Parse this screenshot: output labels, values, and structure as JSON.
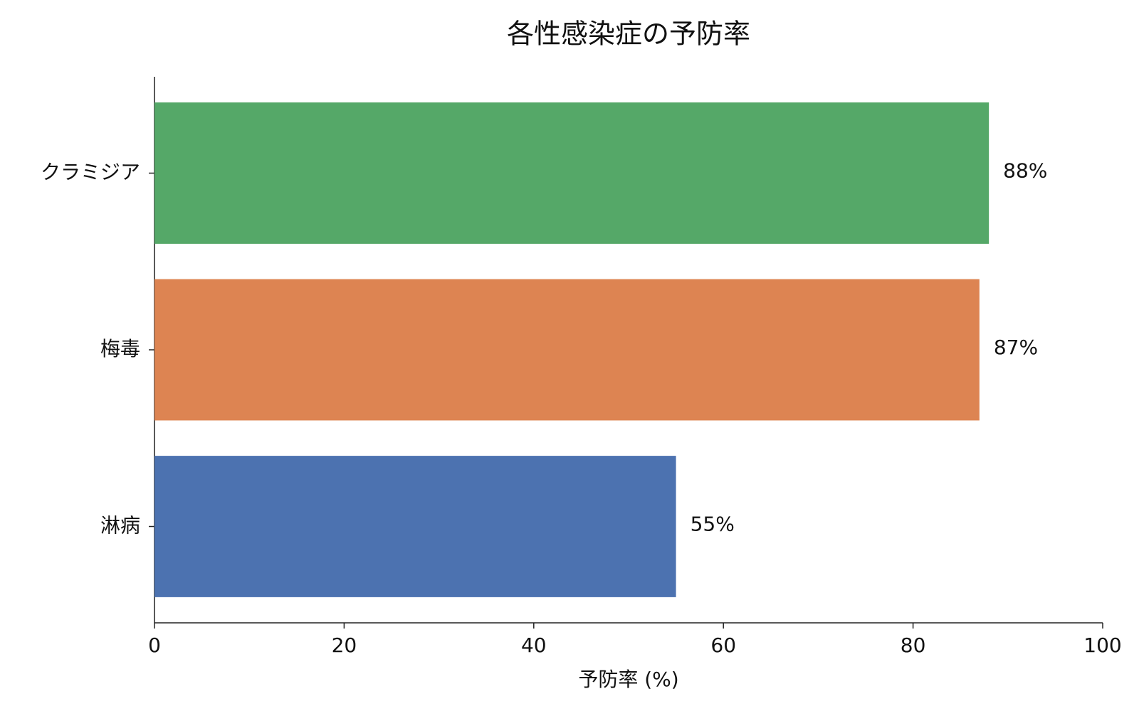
{
  "chart_data": {
    "type": "barh",
    "title": "各性感染症の予防率",
    "categories": [
      "淋病",
      "梅毒",
      "クラミジア"
    ],
    "values": [
      55,
      87,
      88
    ],
    "value_labels": [
      "55%",
      "87%",
      "88%"
    ],
    "colors": [
      "#4c72b0",
      "#dd8452",
      "#55a868"
    ],
    "x_label": "予防率 (%)",
    "xlim": [
      0,
      100
    ],
    "xticks": [
      0,
      20,
      40,
      60,
      80,
      100
    ],
    "grid": false
  }
}
